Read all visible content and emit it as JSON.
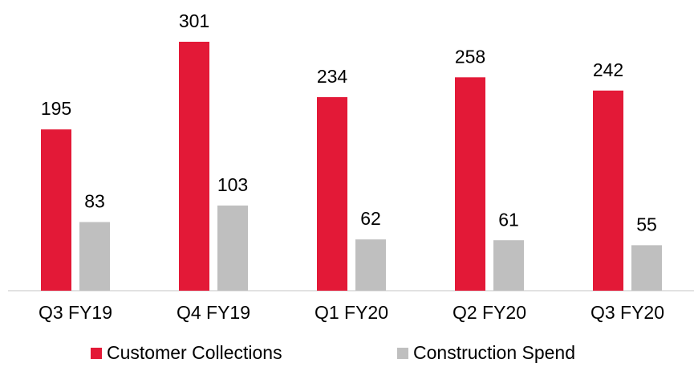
{
  "chart_data": {
    "type": "bar",
    "categories": [
      "Q3 FY19",
      "Q4 FY19",
      "Q1 FY20",
      "Q2 FY20",
      "Q3 FY20"
    ],
    "series": [
      {
        "name": "Customer Collections",
        "color": "#e31937",
        "values": [
          195,
          301,
          234,
          258,
          242
        ]
      },
      {
        "name": "Construction Spend",
        "color": "#bfbfbf",
        "values": [
          83,
          103,
          62,
          61,
          55
        ]
      }
    ],
    "legend": "bottom"
  }
}
